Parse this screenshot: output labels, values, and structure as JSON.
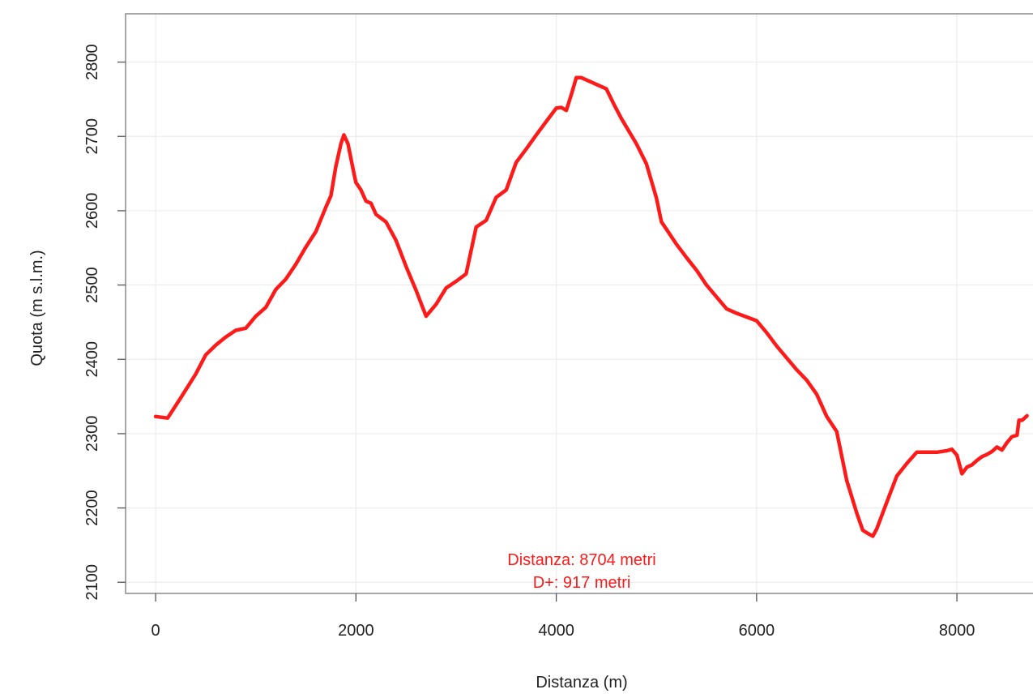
{
  "chart_data": {
    "type": "line",
    "title": "",
    "xlabel": "Distanza (m)",
    "ylabel": "Quota (m s.l.m.)",
    "xlim": [
      -300,
      8800
    ],
    "ylim": [
      2085,
      2865
    ],
    "xticks": [
      0,
      2000,
      4000,
      6000,
      8000
    ],
    "yticks": [
      2100,
      2200,
      2300,
      2400,
      2500,
      2600,
      2700,
      2800
    ],
    "grid": true,
    "line_color": "#ff1a1a",
    "annotation_color": "#ff1a1a",
    "annotations": [
      "Distanza: 8704 metri",
      "D+: 917 metri"
    ],
    "series": [
      {
        "x": [
          0,
          120,
          250,
          400,
          500,
          600,
          700,
          800,
          900,
          1000,
          1100,
          1200,
          1300,
          1400,
          1500,
          1600,
          1700,
          1750,
          1800,
          1850,
          1880,
          1920,
          1980,
          2000,
          2050,
          2100,
          2150,
          2200,
          2250,
          2300,
          2400,
          2500,
          2600,
          2700,
          2800,
          2900,
          3000,
          3100,
          3200,
          3300,
          3400,
          3500,
          3600,
          3700,
          3800,
          3900,
          4000,
          4050,
          4100,
          4150,
          4200,
          4250,
          4300,
          4400,
          4500,
          4580,
          4650,
          4800,
          4900,
          5000,
          5050,
          5100,
          5200,
          5300,
          5400,
          5500,
          5600,
          5700,
          5800,
          6000,
          6100,
          6200,
          6300,
          6400,
          6500,
          6600,
          6700,
          6800,
          6900,
          7000,
          7060,
          7120,
          7160,
          7200,
          7300,
          7400,
          7500,
          7600,
          7700,
          7800,
          7900,
          7950,
          8000,
          8050,
          8100,
          8150,
          8200,
          8250,
          8300,
          8350,
          8400,
          8450,
          8500,
          8550,
          8600,
          8620,
          8650,
          8700
        ],
        "y": [
          2323,
          2321,
          2348,
          2380,
          2406,
          2419,
          2430,
          2439,
          2442,
          2458,
          2470,
          2494,
          2508,
          2528,
          2551,
          2572,
          2605,
          2620,
          2660,
          2690,
          2702,
          2690,
          2650,
          2638,
          2628,
          2613,
          2610,
          2595,
          2590,
          2585,
          2560,
          2525,
          2493,
          2458,
          2474,
          2496,
          2505,
          2515,
          2578,
          2587,
          2618,
          2628,
          2665,
          2683,
          2702,
          2720,
          2738,
          2739,
          2735,
          2756,
          2779,
          2779,
          2776,
          2770,
          2764,
          2742,
          2724,
          2690,
          2663,
          2617,
          2585,
          2575,
          2555,
          2537,
          2520,
          2500,
          2484,
          2468,
          2462,
          2452,
          2436,
          2418,
          2402,
          2386,
          2372,
          2353,
          2323,
          2303,
          2237,
          2193,
          2170,
          2165,
          2162,
          2172,
          2208,
          2243,
          2260,
          2275,
          2275,
          2275,
          2277,
          2279,
          2271,
          2246,
          2255,
          2258,
          2264,
          2269,
          2272,
          2276,
          2282,
          2278,
          2288,
          2296,
          2298,
          2318,
          2318,
          2324
        ]
      }
    ]
  }
}
